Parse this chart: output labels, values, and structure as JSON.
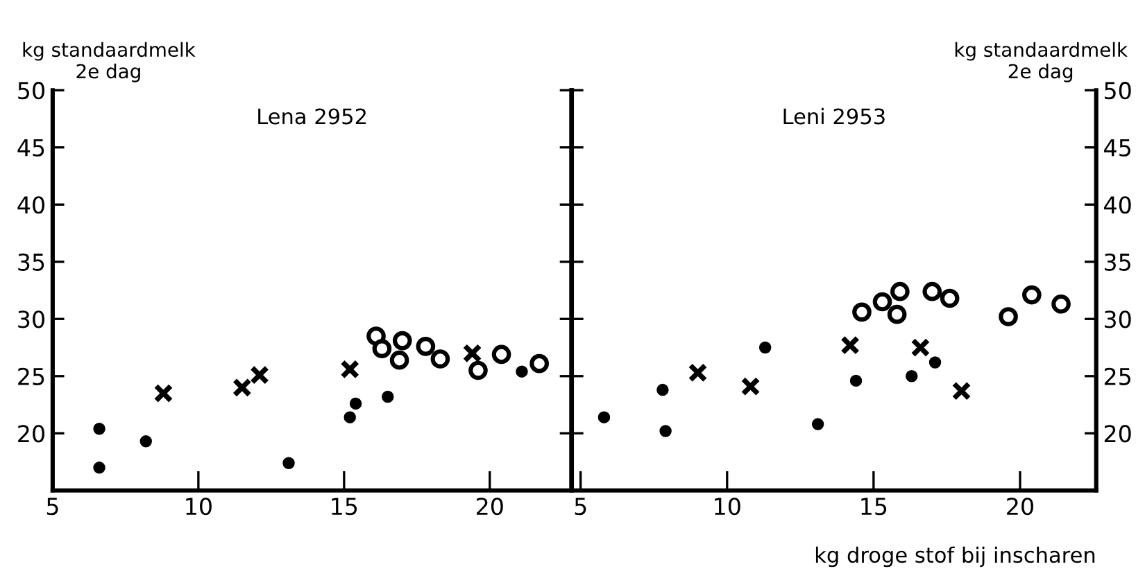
{
  "chart_data": [
    {
      "type": "scatter",
      "title": "Lena 2952",
      "ylabel": "kg standaardmelk\n2e dag",
      "xlim": [
        5,
        22.8
      ],
      "ylim": [
        15,
        50
      ],
      "xticks": [
        5,
        10,
        15,
        20
      ],
      "yticks": [
        20,
        25,
        30,
        35,
        40,
        45,
        50
      ],
      "grid": false,
      "legend": false,
      "tick_labels": "xy",
      "series": [
        {
          "color": "#000000",
          "marker": "cross",
          "x": [
            8.8,
            11.5,
            12.1,
            15.2,
            19.4
          ],
          "values": [
            23.5,
            24.0,
            25.1,
            25.6,
            27.0
          ]
        },
        {
          "color": "#000000",
          "marker": "circle",
          "x": [
            6.6,
            6.6,
            8.2,
            13.1,
            15.2,
            15.4,
            16.5,
            21.1
          ],
          "values": [
            20.4,
            17.0,
            19.3,
            17.4,
            21.4,
            22.6,
            23.2,
            25.4
          ]
        },
        {
          "color": "#000000",
          "marker": "circle",
          "x": [
            16.1,
            16.3,
            17.0,
            16.9,
            17.8,
            18.3,
            19.6,
            20.4,
            21.7
          ],
          "values": [
            28.5,
            27.4,
            28.1,
            26.4,
            27.6,
            26.5,
            25.5,
            26.9,
            26.1
          ]
        }
      ]
    },
    {
      "type": "scatter",
      "title": "Leni 2953",
      "ylabel": "kg standaardmelk\n2e dag",
      "xlabel": "kg droge stof bij inscharen",
      "xlim": [
        4.7,
        22.6
      ],
      "ylim": [
        15,
        50
      ],
      "xticks": [
        5,
        10,
        15,
        20
      ],
      "yticks": [
        20,
        25,
        30,
        35,
        40,
        45,
        50
      ],
      "grid": false,
      "legend": false,
      "tick_labels": "xy",
      "series": [
        {
          "color": "#000000",
          "marker": "cross",
          "x": [
            9.0,
            10.8,
            14.2,
            16.6,
            18.0
          ],
          "values": [
            25.3,
            24.1,
            27.7,
            27.5,
            23.7
          ]
        },
        {
          "color": "#000000",
          "marker": "circle",
          "x": [
            5.8,
            7.8,
            7.9,
            11.3,
            13.1,
            14.4,
            16.3,
            17.1
          ],
          "values": [
            21.4,
            23.8,
            20.2,
            27.5,
            20.8,
            24.6,
            25.0,
            26.2
          ]
        },
        {
          "color": "#000000",
          "marker": "circle",
          "x": [
            14.6,
            15.3,
            15.8,
            15.9,
            17.0,
            17.6,
            19.6,
            20.4,
            21.4
          ],
          "values": [
            30.6,
            31.5,
            30.4,
            32.4,
            32.4,
            31.8,
            30.2,
            32.1,
            31.3
          ]
        }
      ]
    }
  ]
}
